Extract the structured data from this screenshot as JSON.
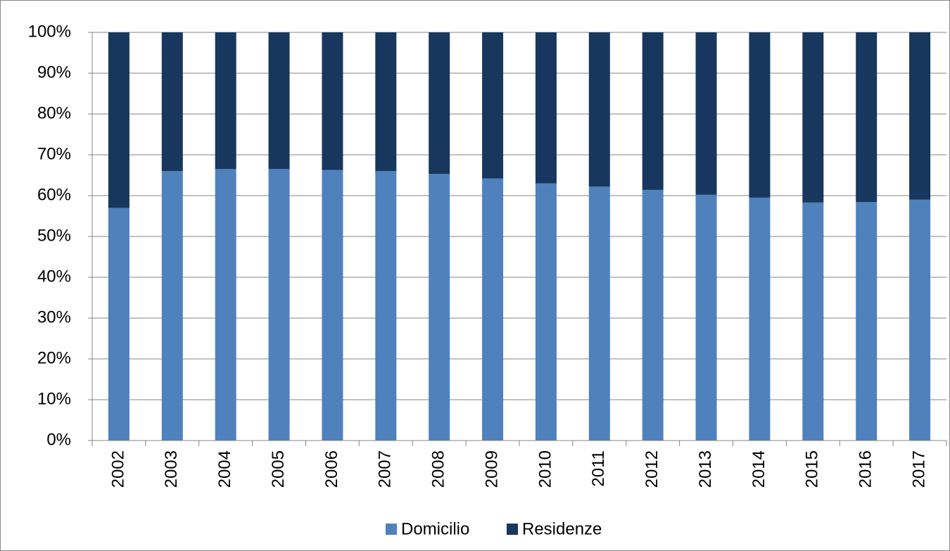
{
  "chart_data": {
    "type": "stacked_bar_100",
    "categories": [
      "2002",
      "2003",
      "2004",
      "2005",
      "2006",
      "2007",
      "2008",
      "2009",
      "2010",
      "2011",
      "2012",
      "2013",
      "2014",
      "2015",
      "2016",
      "2017"
    ],
    "series": [
      {
        "name": "Domicilio",
        "color": "#4f81bd",
        "values": [
          57,
          66,
          66.5,
          66.5,
          66.3,
          66,
          65.3,
          64.2,
          63,
          62.2,
          61.4,
          60.2,
          59.5,
          58.3,
          58.4,
          59
        ]
      },
      {
        "name": "Residenze",
        "color": "#17375e",
        "values": [
          43,
          34,
          33.5,
          33.5,
          33.7,
          34,
          34.7,
          35.8,
          37,
          37.8,
          38.6,
          39.8,
          40.5,
          41.7,
          41.6,
          41
        ]
      }
    ],
    "ylim": [
      0,
      100
    ],
    "yticks": [
      {
        "value": 0,
        "label": "0%"
      },
      {
        "value": 10,
        "label": "10%"
      },
      {
        "value": 20,
        "label": "20%"
      },
      {
        "value": 30,
        "label": "30%"
      },
      {
        "value": 40,
        "label": "40%"
      },
      {
        "value": 50,
        "label": "50%"
      },
      {
        "value": 60,
        "label": "60%"
      },
      {
        "value": 70,
        "label": "70%"
      },
      {
        "value": 80,
        "label": "80%"
      },
      {
        "value": 90,
        "label": "90%"
      },
      {
        "value": 100,
        "label": "100%"
      }
    ],
    "grid": true,
    "legend": "bottom"
  }
}
